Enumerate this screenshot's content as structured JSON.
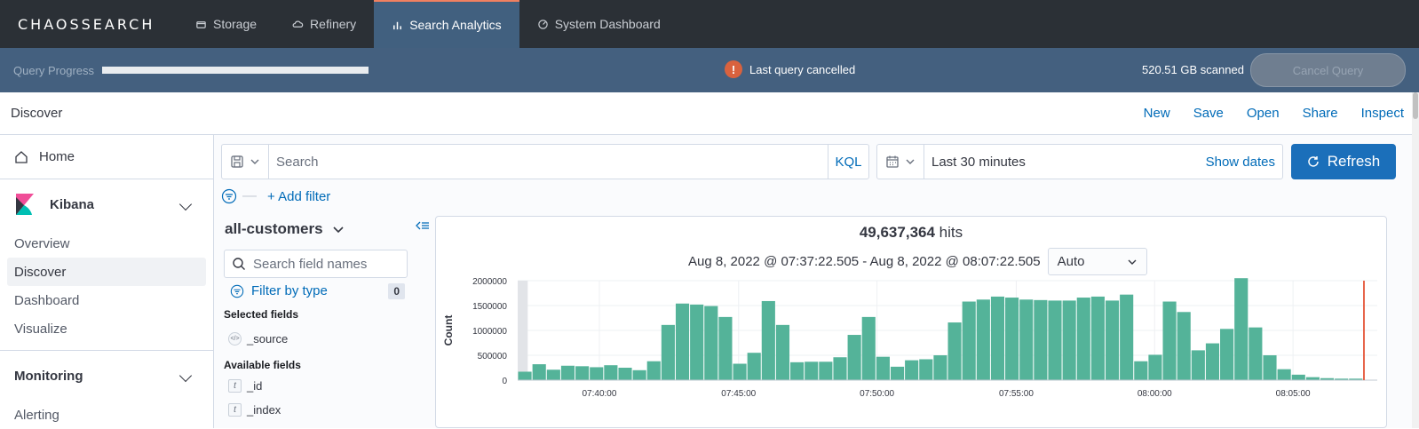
{
  "app": {
    "logo_text": "CHAOSSEARCH",
    "nav_tabs": [
      {
        "label": "Storage",
        "icon": "storage-icon"
      },
      {
        "label": "Refinery",
        "icon": "cloud-icon"
      },
      {
        "label": "Search Analytics",
        "icon": "bar-chart-icon"
      },
      {
        "label": "System Dashboard",
        "icon": "dashboard-icon"
      }
    ],
    "active_tab": "Search Analytics"
  },
  "progress": {
    "label": "Query Progress",
    "fraction": 1.0,
    "status": "Last query cancelled",
    "scanned": "520.51 GB scanned",
    "cancel_label": "Cancel Query"
  },
  "discover": {
    "title": "Discover",
    "links": [
      "New",
      "Save",
      "Open",
      "Share",
      "Inspect"
    ]
  },
  "sidebar": {
    "home": "Home",
    "kibana": "Kibana",
    "kibana_items": [
      "Overview",
      "Discover",
      "Dashboard",
      "Visualize"
    ],
    "active_item": "Discover",
    "monitoring": "Monitoring",
    "monitoring_items": [
      "Alerting"
    ]
  },
  "query": {
    "placeholder": "Search",
    "language": "KQL",
    "time_range": "Last 30 minutes",
    "show_dates": "Show dates",
    "refresh": "Refresh",
    "add_filter": "+ Add filter"
  },
  "fields": {
    "index_pattern": "all-customers",
    "search_placeholder": "Search field names",
    "filter_by_type": "Filter by type",
    "filter_count": "0",
    "selected_title": "Selected fields",
    "selected": [
      {
        "type": "</>",
        "name": "_source"
      }
    ],
    "available_title": "Available fields",
    "available": [
      {
        "type": "t",
        "name": "_id"
      },
      {
        "type": "t",
        "name": "_index"
      }
    ]
  },
  "histogram": {
    "hits_count": "49,637,364",
    "hits_label": "hits",
    "range_text": "Aug 8, 2022 @ 07:37:22.505 - Aug 8, 2022 @ 08:07:22.505",
    "interval": "Auto"
  },
  "chart_data": {
    "type": "bar",
    "ylabel": "Count",
    "ylim": [
      0,
      2000000
    ],
    "yticks": [
      "0",
      "500000",
      "1000000",
      "1500000",
      "2000000"
    ],
    "xticks": [
      "07:40:00",
      "07:45:00",
      "07:50:00",
      "07:55:00",
      "08:00:00",
      "08:05:00"
    ],
    "bar_color": "#54b399",
    "values": [
      170000,
      320000,
      210000,
      290000,
      280000,
      260000,
      300000,
      250000,
      200000,
      380000,
      1110000,
      1540000,
      1520000,
      1490000,
      1270000,
      330000,
      550000,
      1590000,
      1110000,
      360000,
      370000,
      370000,
      460000,
      910000,
      1270000,
      470000,
      270000,
      400000,
      420000,
      500000,
      1160000,
      1580000,
      1620000,
      1680000,
      1660000,
      1620000,
      1610000,
      1600000,
      1600000,
      1660000,
      1680000,
      1600000,
      1720000,
      380000,
      510000,
      1580000,
      1370000,
      600000,
      740000,
      1030000,
      2050000,
      1060000,
      500000,
      220000,
      110000,
      60000,
      40000,
      30000,
      30000
    ],
    "first_bar_start_index": 0,
    "partial_bucket_shading": true,
    "now_marker": true
  }
}
